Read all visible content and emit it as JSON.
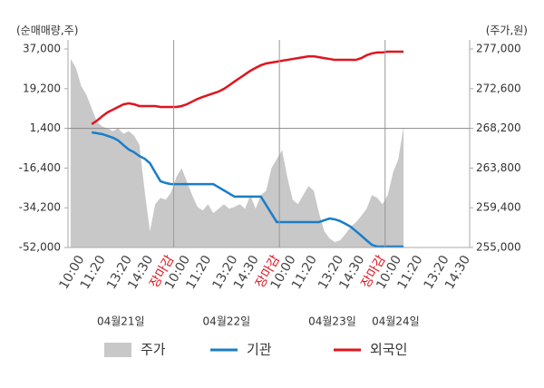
{
  "chart_data": {
    "type": "line",
    "y_axis_label": "(순매매량,주)",
    "y2_axis_label": "(주가,원)",
    "categories": [
      null,
      null,
      "10:00",
      null,
      null,
      null,
      "11:20",
      null,
      null,
      null,
      null,
      "13:20",
      null,
      null,
      null,
      "14:30",
      null,
      null,
      null,
      "장마감",
      null,
      null,
      "10:00",
      null,
      null,
      null,
      "11:20",
      null,
      null,
      null,
      null,
      "13:20",
      null,
      null,
      null,
      "14:30",
      null,
      null,
      null,
      "장마감",
      null,
      null,
      "10:00",
      null,
      null,
      null,
      "11:20",
      null,
      null,
      null,
      null,
      "13:20",
      null,
      null,
      null,
      "14:30",
      null,
      null,
      null,
      "장마감",
      null,
      null,
      "10:00",
      null,
      null,
      null,
      "11:20",
      null,
      null,
      null,
      null,
      "13:20",
      null,
      null,
      null,
      "14:30"
    ],
    "dates": [
      "04월21일",
      "04월22일",
      "04월23일",
      "04월24일"
    ],
    "series": [
      {
        "name": "주가",
        "kind": "area",
        "axis": "y2",
        "color": "#c8c8c8",
        "values": [
          275900,
          274900,
          272900,
          271900,
          270400,
          268900,
          268400,
          268200,
          267900,
          268200,
          267600,
          267900,
          267400,
          266400,
          261300,
          256800,
          259800,
          260500,
          260300,
          261100,
          262800,
          263800,
          262300,
          260800,
          259500,
          259100,
          259800,
          258800,
          259300,
          259800,
          259300,
          259500,
          259800,
          259300,
          260800,
          259300,
          260800,
          261300,
          263800,
          264800,
          265800,
          262800,
          260300,
          259800,
          260800,
          261800,
          261300,
          258800,
          256800,
          256000,
          255600,
          255800,
          256500,
          257300,
          257800,
          258500,
          259300,
          260800,
          260500,
          259800,
          260800,
          263300,
          264800,
          268400,
          null,
          null,
          null,
          null,
          null,
          null,
          null,
          null,
          null,
          null,
          null,
          null
        ]
      },
      {
        "name": "기관",
        "kind": "line",
        "color": "#1a7dc8",
        "values": [
          null,
          null,
          null,
          null,
          -400,
          -800,
          -1200,
          -2000,
          -2800,
          -4000,
          -6100,
          -8100,
          -9300,
          -11000,
          -12200,
          -14200,
          -18300,
          -22300,
          -23100,
          -23600,
          -23600,
          -23600,
          -23600,
          -23600,
          -23600,
          -23600,
          -23600,
          -23600,
          -25000,
          -26400,
          -27800,
          -29200,
          -29200,
          -29200,
          -29200,
          -29200,
          -29200,
          -33000,
          -36800,
          -40600,
          -40600,
          -40600,
          -40600,
          -40600,
          -40600,
          -40600,
          -40600,
          -40600,
          -39800,
          -39000,
          -39400,
          -40200,
          -41400,
          -42700,
          -44700,
          -46700,
          -48800,
          -50800,
          -51600,
          -51600,
          -51600,
          -51600,
          -51600,
          -51600,
          null,
          null,
          null,
          null,
          null,
          null,
          null,
          null,
          null,
          null,
          null,
          null
        ]
      },
      {
        "name": "외국인",
        "kind": "line",
        "color": "#e0141e",
        "values": [
          null,
          null,
          null,
          null,
          3300,
          4900,
          6900,
          8600,
          9800,
          11000,
          12200,
          12600,
          12200,
          11400,
          11400,
          11400,
          11400,
          11000,
          11000,
          11000,
          11000,
          11400,
          12200,
          13400,
          14600,
          15500,
          16300,
          17100,
          17900,
          19100,
          20700,
          22400,
          24000,
          25600,
          27200,
          28500,
          29700,
          30500,
          30900,
          31300,
          31700,
          32100,
          32500,
          32900,
          33300,
          33700,
          33700,
          33300,
          32900,
          32500,
          32100,
          32100,
          32100,
          32100,
          32100,
          32900,
          34200,
          35000,
          35400,
          35400,
          35800,
          35800,
          35800,
          35800,
          null,
          null,
          null,
          null,
          null,
          null,
          null,
          null,
          null,
          null,
          null,
          null
        ]
      }
    ],
    "ylim": [
      -52000,
      37000
    ],
    "yticks": [
      {
        "value": -52000,
        "label": "-52,000"
      },
      {
        "value": -34200,
        "label": "-34,200"
      },
      {
        "value": -16400,
        "label": "-16,400"
      },
      {
        "value": 1400,
        "label": "1,400"
      },
      {
        "value": 19200,
        "label": "19,200"
      },
      {
        "value": 37000,
        "label": "37,000"
      }
    ],
    "y2lim": [
      255000,
      277000
    ],
    "y2ticks": [
      {
        "value": 255000,
        "label": "255,000"
      },
      {
        "value": 259400,
        "label": "259,400"
      },
      {
        "value": 263800,
        "label": "263,800"
      },
      {
        "value": 268200,
        "label": "268,200"
      },
      {
        "value": 272600,
        "label": "272,600"
      },
      {
        "value": 277000,
        "label": "277,000"
      }
    ],
    "reference_line": 1400
  }
}
